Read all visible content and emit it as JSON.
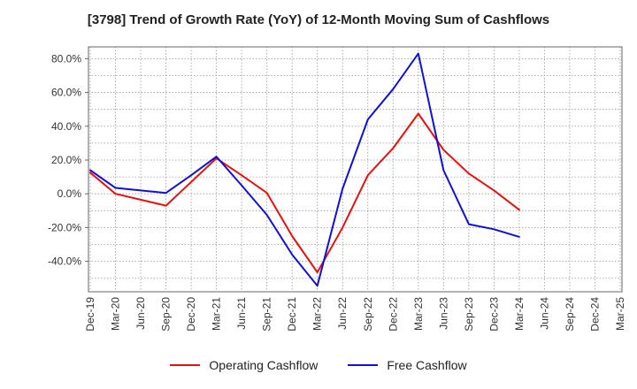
{
  "chart_data": {
    "type": "line",
    "title": "[3798]  Trend of Growth Rate (YoY) of 12-Month Moving Sum of Cashflows",
    "xlabel": "",
    "ylabel": "",
    "x": [
      "Dec-19",
      "Mar-20",
      "Jun-20",
      "Sep-20",
      "Dec-20",
      "Mar-21",
      "Jun-21",
      "Sep-21",
      "Dec-21",
      "Mar-22",
      "Jun-22",
      "Sep-22",
      "Dec-22",
      "Mar-23",
      "Jun-23",
      "Sep-23",
      "Dec-23",
      "Mar-24",
      "Jun-24",
      "Sep-24",
      "Dec-24",
      "Mar-25"
    ],
    "ylim": [
      -58,
      87
    ],
    "yticks": [
      -40,
      -20,
      0,
      20,
      40,
      60,
      80
    ],
    "ytick_labels": [
      "-40.0%",
      "-20.0%",
      "0.0%",
      "20.0%",
      "40.0%",
      "60.0%",
      "80.0%"
    ],
    "grid": true,
    "legend_position": "bottom",
    "series": [
      {
        "name": "Operating Cashflow",
        "color": "#e8120c",
        "values": [
          12.5,
          0.0,
          -3.5,
          -7.0,
          7.0,
          21.0,
          11.0,
          0.5,
          -25.0,
          -46.5,
          -20.0,
          11.0,
          27.0,
          47.5,
          26.0,
          12.0,
          2.0,
          -9.5,
          null,
          null,
          null,
          null
        ]
      },
      {
        "name": "Free Cashflow",
        "color": "#1010d8",
        "values": [
          14.0,
          3.5,
          2.0,
          0.5,
          11.0,
          22.0,
          5.0,
          -12.5,
          -36.0,
          -54.5,
          3.0,
          44.0,
          62.0,
          83.0,
          14.0,
          -18.0,
          -21.0,
          -25.5,
          null,
          null,
          null,
          null
        ]
      }
    ]
  }
}
